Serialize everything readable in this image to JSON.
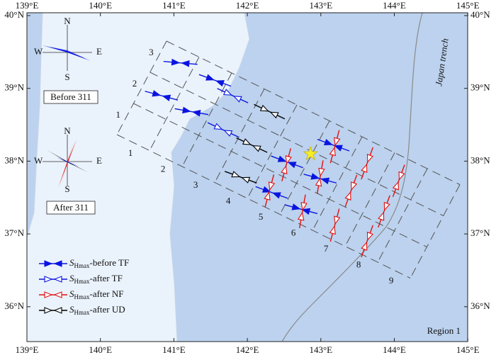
{
  "map": {
    "lon_ticks": [
      {
        "value": 139,
        "label": "139°E"
      },
      {
        "value": 140,
        "label": "140°E"
      },
      {
        "value": 141,
        "label": "141°E"
      },
      {
        "value": 142,
        "label": "142°E"
      },
      {
        "value": 143,
        "label": "143°E"
      },
      {
        "value": 144,
        "label": "144°E"
      },
      {
        "value": 145,
        "label": "145°E"
      }
    ],
    "lat_ticks": [
      {
        "value": 36,
        "label": "36°N"
      },
      {
        "value": 37,
        "label": "37°N"
      },
      {
        "value": 38,
        "label": "38°N"
      },
      {
        "value": 39,
        "label": "39°N"
      },
      {
        "value": 40,
        "label": "40°N"
      }
    ],
    "trench_label": "Japan trench",
    "region_label": "Region 1",
    "grid_row_labels": [
      "3",
      "2",
      "1"
    ],
    "grid_column_labels": [
      "1",
      "2",
      "3",
      "4",
      "5",
      "6",
      "7",
      "8",
      "9"
    ],
    "compass": [
      {
        "title": "Before 311",
        "n": "N",
        "s": "S",
        "e": "E",
        "w": "W"
      },
      {
        "title": "After 311",
        "n": "N",
        "s": "S",
        "e": "E",
        "w": "W"
      }
    ],
    "legend": [
      {
        "symbol": "S",
        "subscript": "Hmax",
        "label": "-before TF",
        "color": "#0a14e0",
        "filled": true
      },
      {
        "symbol": "S",
        "subscript": "Hmax",
        "label": "-after TF",
        "color": "#0a14e0",
        "filled": false
      },
      {
        "symbol": "S",
        "subscript": "Hmax",
        "label": "-after NF",
        "color": "#e01010",
        "filled": false
      },
      {
        "symbol": "S",
        "subscript": "Hmax",
        "label": "-after UD",
        "color": "#000000",
        "filled": false
      }
    ],
    "epicenter": {
      "lon": 142.86,
      "lat": 38.1
    },
    "symbols": [
      {
        "lon": 141.09,
        "lat": 39.35,
        "azimuth": 95,
        "type": 0
      },
      {
        "lon": 141.56,
        "lat": 39.11,
        "azimuth": 110,
        "type": 0
      },
      {
        "lon": 140.83,
        "lat": 38.9,
        "azimuth": 105,
        "type": 0
      },
      {
        "lon": 141.24,
        "lat": 38.68,
        "azimuth": 100,
        "type": 0
      },
      {
        "lon": 143.17,
        "lat": 38.22,
        "azimuth": 110,
        "type": 0
      },
      {
        "lon": 142.99,
        "lat": 37.76,
        "azimuth": 105,
        "type": 0
      },
      {
        "lon": 142.33,
        "lat": 37.57,
        "azimuth": 110,
        "type": 0
      },
      {
        "lon": 142.73,
        "lat": 37.34,
        "azimuth": 105,
        "type": 0
      },
      {
        "lon": 142.54,
        "lat": 37.99,
        "azimuth": 110,
        "type": 0
      },
      {
        "lon": 141.8,
        "lat": 38.9,
        "azimuth": 115,
        "type": 1
      },
      {
        "lon": 141.67,
        "lat": 38.43,
        "azimuth": 115,
        "type": 1
      },
      {
        "lon": 142.3,
        "lat": 38.68,
        "azimuth": 115,
        "type": 3
      },
      {
        "lon": 142.06,
        "lat": 38.22,
        "azimuth": 115,
        "type": 3
      },
      {
        "lon": 141.91,
        "lat": 37.78,
        "azimuth": 110,
        "type": 3
      },
      {
        "lon": 142.53,
        "lat": 37.95,
        "azimuth": 15,
        "type": 2
      },
      {
        "lon": 143.19,
        "lat": 38.2,
        "azimuth": 15,
        "type": 2
      },
      {
        "lon": 142.99,
        "lat": 37.78,
        "azimuth": 10,
        "type": 2
      },
      {
        "lon": 142.3,
        "lat": 37.59,
        "azimuth": 15,
        "type": 2
      },
      {
        "lon": 142.75,
        "lat": 37.31,
        "azimuth": 10,
        "type": 2
      },
      {
        "lon": 143.63,
        "lat": 37.97,
        "azimuth": 20,
        "type": 2
      },
      {
        "lon": 143.41,
        "lat": 37.59,
        "azimuth": 20,
        "type": 2
      },
      {
        "lon": 144.06,
        "lat": 37.73,
        "azimuth": 20,
        "type": 2
      },
      {
        "lon": 143.86,
        "lat": 37.31,
        "azimuth": 20,
        "type": 2
      },
      {
        "lon": 143.19,
        "lat": 37.12,
        "azimuth": 15,
        "type": 2
      },
      {
        "lon": 143.63,
        "lat": 36.9,
        "azimuth": 20,
        "type": 2
      }
    ]
  }
}
